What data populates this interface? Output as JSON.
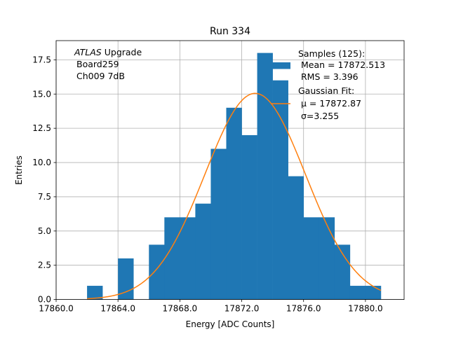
{
  "chart_data": {
    "type": "bar",
    "title": "Run 334",
    "xlabel": "Energy [ADC Counts]",
    "ylabel": "Entries",
    "xlim": [
      17860.0,
      17882.5
    ],
    "ylim": [
      0,
      18.9
    ],
    "grid": true,
    "legend_position": "top-right",
    "x_ticks": [
      17860.0,
      17864.0,
      17868.0,
      17872.0,
      17876.0,
      17880.0
    ],
    "x_tick_labels": [
      "17860.0",
      "17864.0",
      "17868.0",
      "17872.0",
      "17876.0",
      "17880.0"
    ],
    "y_ticks": [
      0,
      2.5,
      5,
      7.5,
      10,
      12.5,
      15,
      17.5
    ],
    "y_tick_labels": [
      "0.0",
      "2.5",
      "5.0",
      "7.5",
      "10.0",
      "12.5",
      "15.0",
      "17.5"
    ],
    "histogram": {
      "name": "Samples (125):",
      "color": "#1f77b4",
      "bin_edges": [
        17862.0,
        17863.0,
        17864.0,
        17865.0,
        17866.0,
        17867.0,
        17868.0,
        17869.0,
        17870.0,
        17871.0,
        17872.0,
        17873.0,
        17874.0,
        17875.0,
        17876.0,
        17877.0,
        17878.0,
        17879.0,
        17880.0,
        17881.0
      ],
      "counts": [
        1,
        0,
        3,
        0,
        4,
        6,
        6,
        7,
        11,
        14,
        12,
        18,
        16,
        9,
        6,
        6,
        4,
        1,
        1
      ]
    },
    "fit": {
      "name": "Gaussian Fit:",
      "color": "#ff7f0e",
      "mu": 17872.87,
      "sigma": 3.255,
      "amplitude": 15.05,
      "x_range": [
        17862.0,
        17881.0
      ]
    },
    "legend": {
      "samples_label": "Samples (125):",
      "samples_mean": "Mean = 17872.513",
      "samples_rms": "RMS = 3.396",
      "fit_label": "Gaussian Fit:",
      "fit_mu": "μ = 17872.87",
      "fit_sigma": "σ=3.255"
    },
    "annotation": {
      "atlas": "ATLAS",
      "upgrade": "Upgrade",
      "board": "Board259",
      "channel": "Ch009 7dB"
    }
  }
}
